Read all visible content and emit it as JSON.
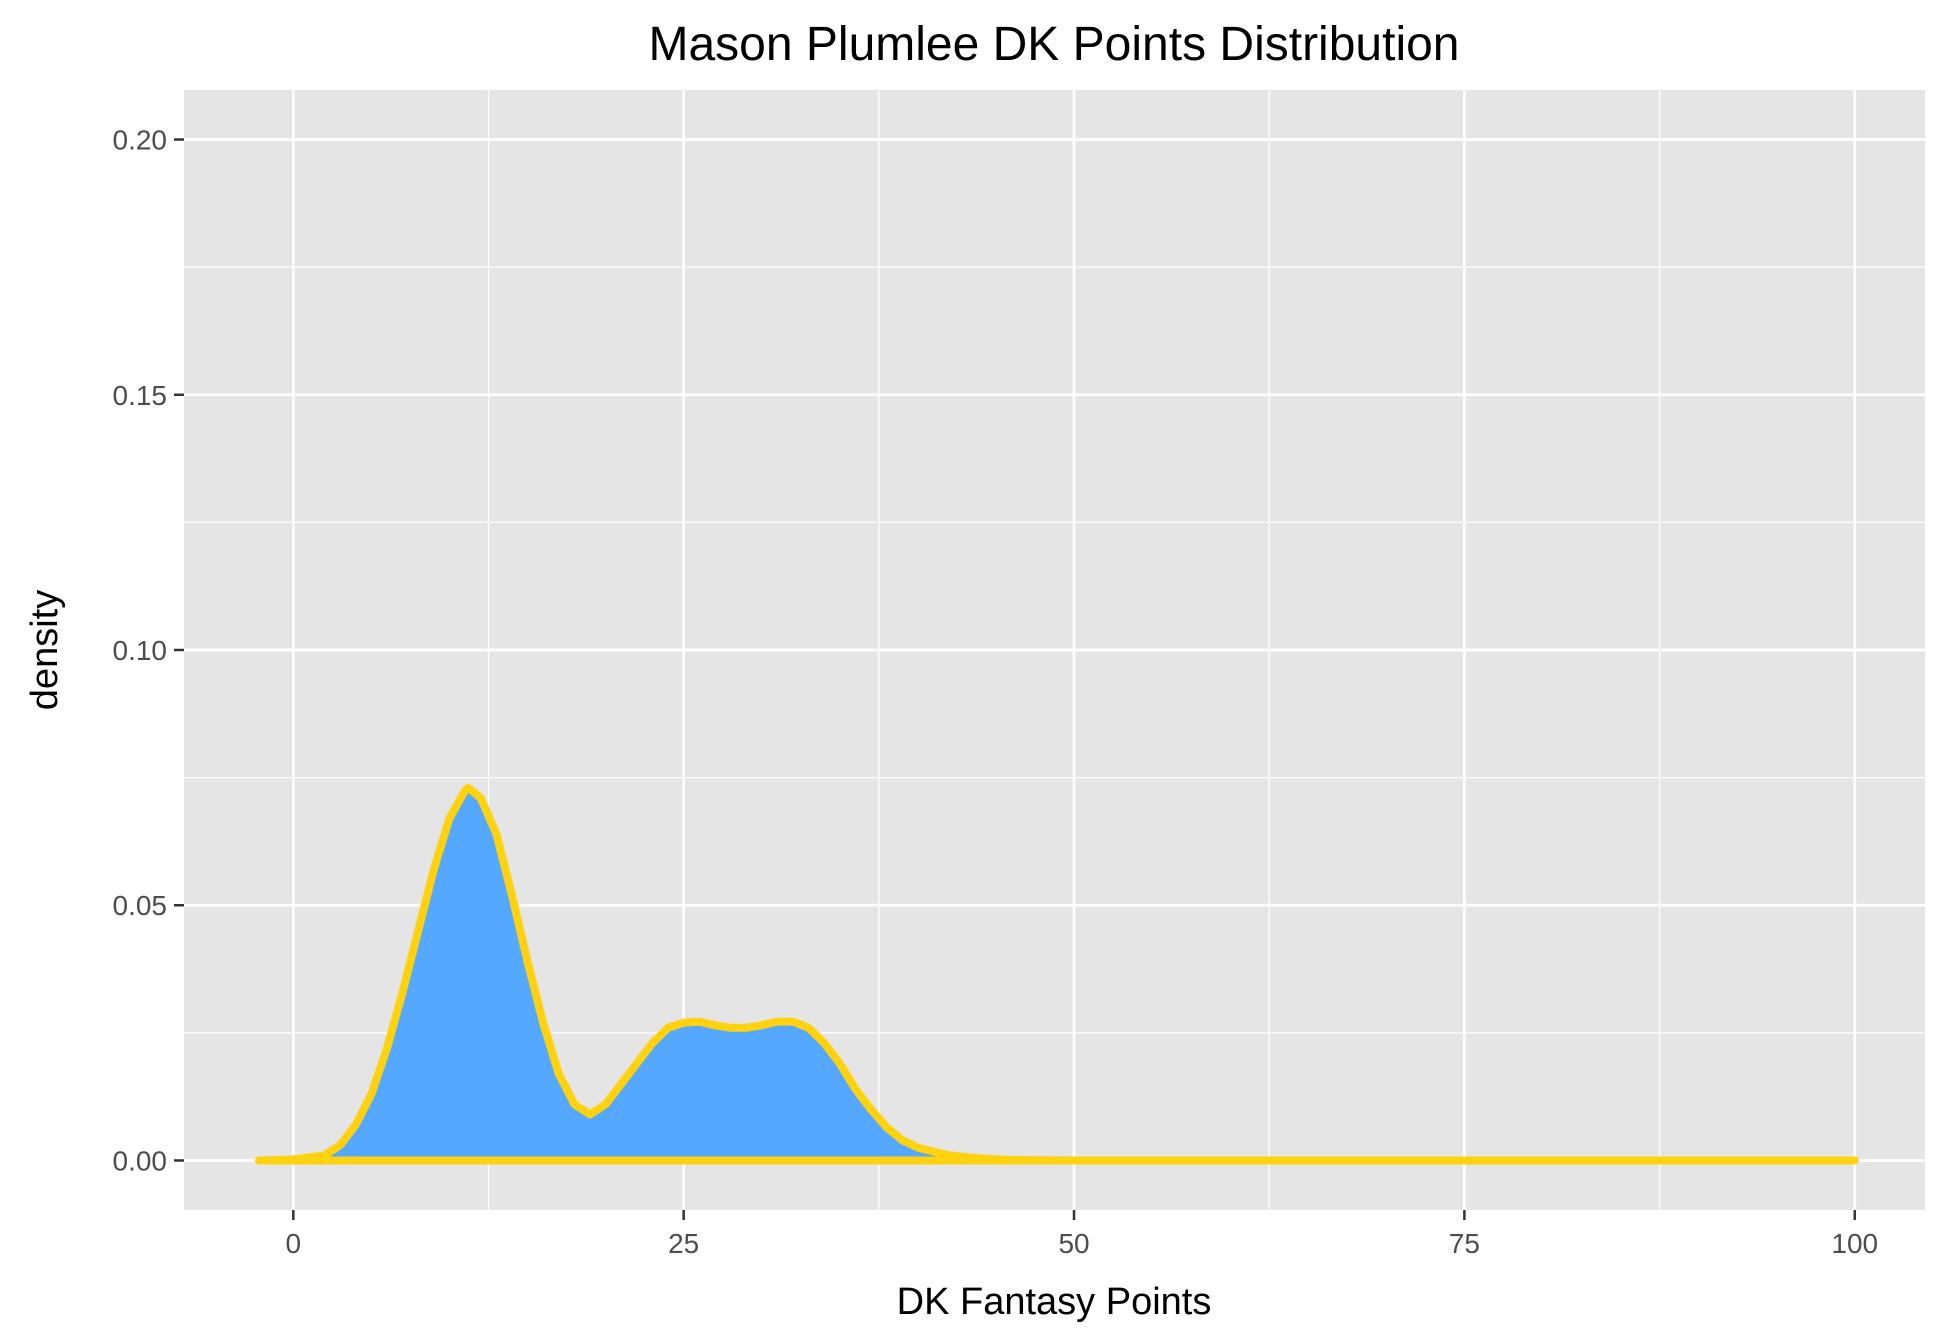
{
  "chart_data": {
    "type": "area",
    "title": "Mason Plumlee DK Points Distribution",
    "xlabel": "DK Fantasy Points",
    "ylabel": "density",
    "xlim": [
      -7,
      104.5
    ],
    "ylim": [
      -0.0097,
      0.2097
    ],
    "x_ticks": [
      0,
      25,
      50,
      75,
      100
    ],
    "x_tick_labels": [
      "0",
      "25",
      "50",
      "75",
      "100"
    ],
    "y_ticks": [
      0,
      0.05,
      0.1,
      0.15,
      0.2
    ],
    "y_tick_labels": [
      "0.00",
      "0.05",
      "0.10",
      "0.15",
      "0.20"
    ],
    "grid": true,
    "legend": "none",
    "colors": {
      "fill": "#54A8FF",
      "line": "#FFD20F",
      "panel": "#E5E5E5",
      "grid": "#FFFFFF"
    },
    "series": [
      {
        "x": [
          -2.2,
          0,
          2,
          3,
          4,
          5,
          6,
          7,
          8,
          9,
          10,
          11,
          11.2,
          12,
          13,
          14,
          15,
          16,
          17,
          18,
          19,
          20,
          21,
          22,
          23,
          24,
          25,
          26,
          27,
          28,
          29,
          30,
          31,
          32,
          33,
          34,
          35,
          36,
          37,
          38,
          39,
          40,
          42,
          44,
          46,
          50,
          60,
          75,
          100
        ],
        "y": [
          0,
          0.0002,
          0.001,
          0.003,
          0.007,
          0.013,
          0.022,
          0.033,
          0.045,
          0.057,
          0.067,
          0.0725,
          0.073,
          0.071,
          0.064,
          0.052,
          0.039,
          0.027,
          0.017,
          0.011,
          0.009,
          0.011,
          0.015,
          0.019,
          0.023,
          0.026,
          0.027,
          0.0272,
          0.0265,
          0.026,
          0.026,
          0.0265,
          0.0272,
          0.0272,
          0.026,
          0.023,
          0.019,
          0.014,
          0.01,
          0.0065,
          0.004,
          0.0025,
          0.001,
          0.0004,
          0.0001,
          0,
          0,
          0,
          0
        ]
      }
    ]
  }
}
